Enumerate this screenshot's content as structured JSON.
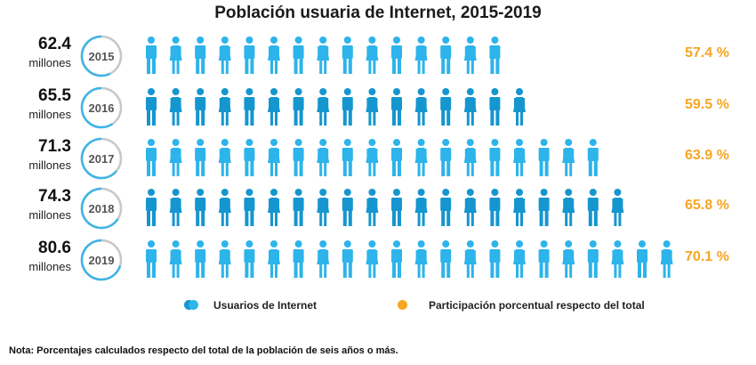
{
  "chart_data": {
    "type": "pictogram",
    "title": "Población usuaria de Internet, 2015-2019",
    "rows": [
      {
        "year": "2015",
        "value": "62.4",
        "unit": "millones",
        "percent": "57.4 %",
        "pct": 57.4,
        "icons": 15
      },
      {
        "year": "2016",
        "value": "65.5",
        "unit": "millones",
        "percent": "59.5 %",
        "pct": 59.5,
        "icons": 16
      },
      {
        "year": "2017",
        "value": "71.3",
        "unit": "millones",
        "percent": "63.9 %",
        "pct": 63.9,
        "icons": 19
      },
      {
        "year": "2018",
        "value": "74.3",
        "unit": "millones",
        "percent": "65.8 %",
        "pct": 65.8,
        "icons": 20
      },
      {
        "year": "2019",
        "value": "80.6",
        "unit": "millones",
        "percent": "70.1 %",
        "pct": 70.1,
        "icons": 22
      }
    ],
    "legend": [
      {
        "label": "Usuarios de Internet",
        "color": "#29abe2"
      },
      {
        "label": "Participación porcentual respecto del total",
        "color": "#f5a623"
      }
    ],
    "colors": {
      "light": "#2db4ea",
      "dark": "#1596cf",
      "ring_gray": "#c8c8c8",
      "accent": "#f5a623"
    }
  },
  "note": "Nota: Porcentajes calculados respecto del total de la población de seis años o más."
}
